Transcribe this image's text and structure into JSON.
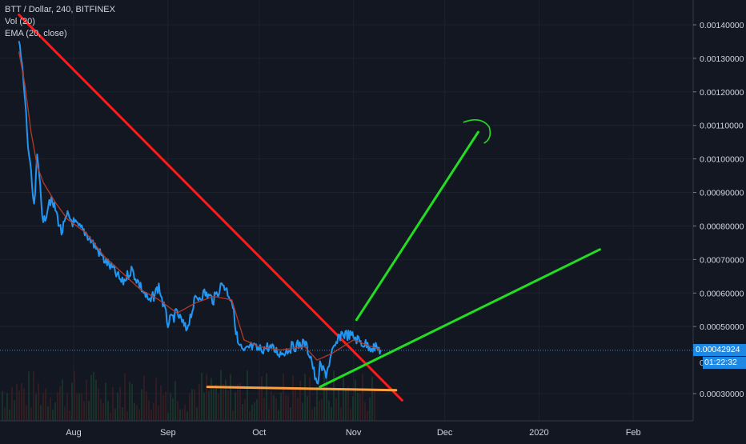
{
  "legend": {
    "symbol_line": "BTT / Dollar, 240, BITFINEX",
    "volume_line": "Vol (20)",
    "ema_line": "EMA (20, close)"
  },
  "price_scale": {
    "last_price": "0.00042924",
    "countdown": "01:22:32",
    "partial_label": "0."
  },
  "colors": {
    "background": "#131722",
    "price_line": "#2196f3",
    "ema_line": "#b23a2a",
    "resistance_line": "#ff1a1a",
    "support_line": "#ffa040",
    "projection_line": "#22dd22",
    "last_price_tag": "#1e88e5"
  },
  "chart_data": {
    "type": "line",
    "title": "BTT / Dollar, 240, BITFINEX",
    "x_ticks": [
      "Aug",
      "Sep",
      "Oct",
      "Nov",
      "Dec",
      "2020",
      "Feb"
    ],
    "y_ticks": [
      "0.00140000",
      "0.00130000",
      "0.00120000",
      "0.00110000",
      "0.00100000",
      "0.00090000",
      "0.00080000",
      "0.00070000",
      "0.00060000",
      "0.00050000",
      "0.00030000"
    ],
    "ylim": [
      0.00027,
      0.00146
    ],
    "series": [
      {
        "name": "BTT / Dollar",
        "x": [
          "Jul 14",
          "Jul 15",
          "Jul 16",
          "Jul 17",
          "Jul 18",
          "Jul 19",
          "Jul 20",
          "Jul 21",
          "Jul 22",
          "Jul 24",
          "Jul 26",
          "Jul 28",
          "Jul 30",
          "Aug 2",
          "Aug 5",
          "Aug 8",
          "Aug 11",
          "Aug 14",
          "Aug 17",
          "Aug 20",
          "Aug 23",
          "Aug 26",
          "Aug 29",
          "Sep 1",
          "Sep 4",
          "Sep 7",
          "Sep 10",
          "Sep 13",
          "Sep 16",
          "Sep 19",
          "Sep 22",
          "Sep 24",
          "Sep 26",
          "Sep 28",
          "Oct 1",
          "Oct 4",
          "Oct 8",
          "Oct 12",
          "Oct 16",
          "Oct 18",
          "Oct 20",
          "Oct 21",
          "Oct 23",
          "Oct 25",
          "Oct 28",
          "Nov 1",
          "Nov 4",
          "Nov 7",
          "Nov 10"
        ],
        "y": [
          0.00135,
          0.00128,
          0.00118,
          0.00104,
          0.00095,
          0.00085,
          0.001,
          0.00093,
          0.0008,
          0.00088,
          0.00085,
          0.00078,
          0.00083,
          0.0008,
          0.00078,
          0.00074,
          0.0007,
          0.00067,
          0.00063,
          0.00067,
          0.00062,
          0.00057,
          0.00062,
          0.00051,
          0.00054,
          0.00049,
          0.00058,
          0.0006,
          0.00058,
          0.00063,
          0.00058,
          0.00045,
          0.00042,
          0.00044,
          0.00043,
          0.00044,
          0.00042,
          0.00044,
          0.00045,
          0.00041,
          0.00032,
          0.00038,
          0.00036,
          0.00042,
          0.00048,
          0.00047,
          0.00045,
          0.00044,
          0.00043
        ]
      },
      {
        "name": "EMA (20, close)",
        "x": [
          "Jul 14",
          "Jul 16",
          "Jul 18",
          "Jul 20",
          "Jul 22",
          "Jul 26",
          "Jul 30",
          "Aug 5",
          "Aug 11",
          "Aug 17",
          "Aug 23",
          "Aug 29",
          "Sep 4",
          "Sep 10",
          "Sep 16",
          "Sep 22",
          "Sep 26",
          "Oct 1",
          "Oct 8",
          "Oct 16",
          "Oct 20",
          "Oct 25",
          "Nov 1",
          "Nov 7",
          "Nov 10"
        ],
        "y": [
          0.00132,
          0.00122,
          0.00108,
          0.00098,
          0.00093,
          0.00087,
          0.00082,
          0.00078,
          0.00071,
          0.00066,
          0.00061,
          0.00058,
          0.00054,
          0.00057,
          0.00059,
          0.00058,
          0.00046,
          0.00044,
          0.00043,
          0.00044,
          0.0004,
          0.00042,
          0.00046,
          0.00044,
          0.00043
        ]
      }
    ],
    "drawings": [
      {
        "kind": "trendline",
        "color": "#ff1a1a",
        "from": [
          "Jul 14",
          0.00143
        ],
        "to": [
          "Nov 17",
          0.00028
        ]
      },
      {
        "kind": "trendline",
        "color": "#ffa040",
        "from": [
          "Sep 14",
          0.00032
        ],
        "to": [
          "Nov 15",
          0.00031
        ]
      },
      {
        "kind": "trendline",
        "color": "#22dd22",
        "from": [
          "Oct 21",
          0.00032
        ],
        "to": [
          "Jan 21",
          0.00073
        ]
      },
      {
        "kind": "trendline",
        "color": "#22dd22",
        "from": [
          "Nov 2",
          0.00052
        ],
        "to": [
          "Dec 12",
          0.00108
        ]
      },
      {
        "kind": "arc",
        "color": "#22dd22",
        "near": [
          "Dec 13",
          0.0011
        ]
      }
    ],
    "last_price": 0.00042924,
    "grid": true,
    "legend_position": "top-left"
  }
}
